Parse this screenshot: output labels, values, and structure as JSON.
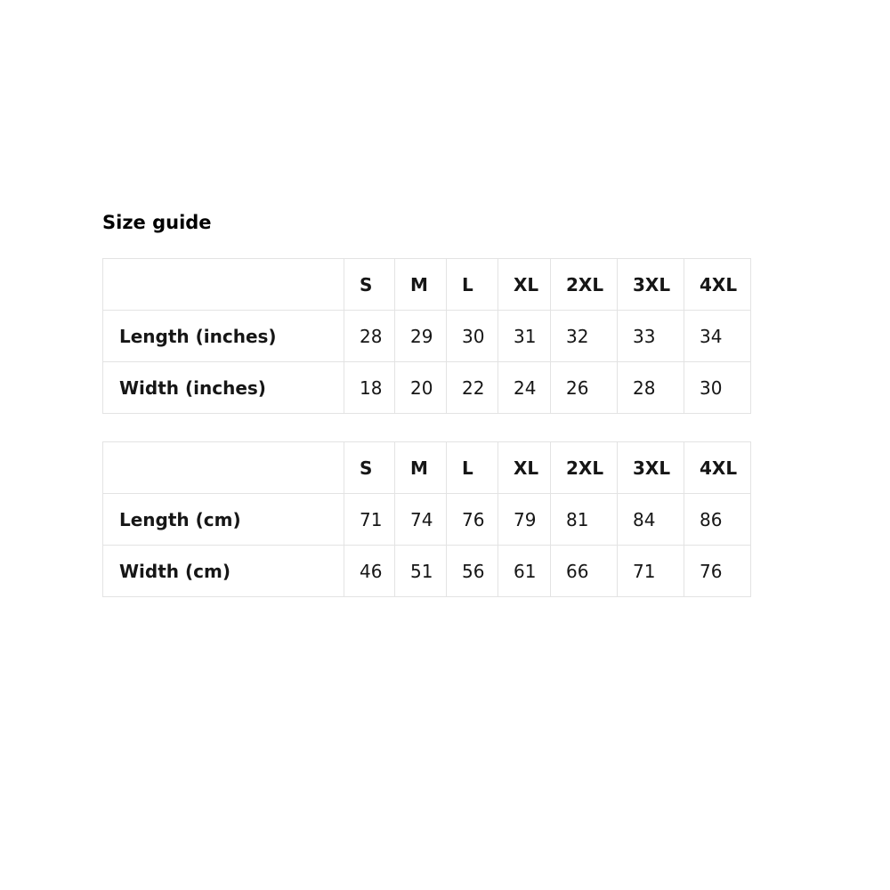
{
  "heading": "Size guide",
  "chart_data": [
    {
      "type": "table",
      "units": "inches",
      "columns": [
        "S",
        "M",
        "L",
        "XL",
        "2XL",
        "3XL",
        "4XL"
      ],
      "rows": [
        {
          "label": "Length (inches)",
          "values": [
            28,
            29,
            30,
            31,
            32,
            33,
            34
          ]
        },
        {
          "label": "Width (inches)",
          "values": [
            18,
            20,
            22,
            24,
            26,
            28,
            30
          ]
        }
      ]
    },
    {
      "type": "table",
      "units": "cm",
      "columns": [
        "S",
        "M",
        "L",
        "XL",
        "2XL",
        "3XL",
        "4XL"
      ],
      "rows": [
        {
          "label": "Length (cm)",
          "values": [
            71,
            74,
            76,
            79,
            81,
            84,
            86
          ]
        },
        {
          "label": "Width (cm)",
          "values": [
            46,
            51,
            56,
            61,
            66,
            71,
            76
          ]
        }
      ]
    }
  ],
  "colors": {
    "background": "#ffffff",
    "text": "#161616",
    "heading_text": "#000000",
    "table_border": "#e3e3e3"
  }
}
